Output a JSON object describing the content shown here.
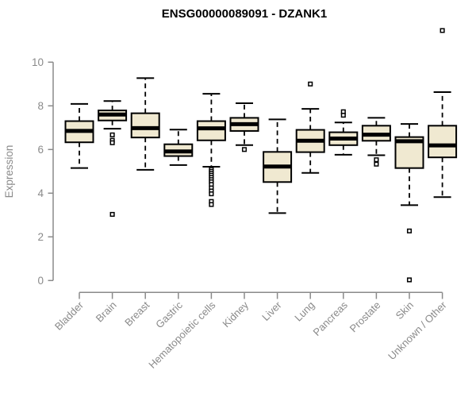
{
  "colors": {
    "box_fill": "#F0E9D1",
    "line": "#000000",
    "axis": "#8A8A8A",
    "title": "#000000",
    "background": "#FFFFFF"
  },
  "chart_data": {
    "type": "boxplot",
    "title": "ENSG00000089091 - DZANK1",
    "ylabel": "Expression",
    "xlabel": "",
    "ylim": [
      0,
      10
    ],
    "yticks": [
      0,
      2,
      4,
      6,
      8,
      10
    ],
    "grid": false,
    "legend": "none",
    "whisker_style": "dashed",
    "outlier_marker": "open-square",
    "categories": [
      "Bladder",
      "Brain",
      "Breast",
      "Gastric",
      "Hematopoietic cells",
      "Kidney",
      "Liver",
      "Lung",
      "Pancreas",
      "Prostate",
      "Skin",
      "Unknown / Other"
    ],
    "series": [
      {
        "category": "Bladder",
        "whisker_low": 5.15,
        "q1": 6.33,
        "median": 6.85,
        "q3": 7.3,
        "whisker_high": 8.09,
        "outliers": []
      },
      {
        "category": "Brain",
        "whisker_low": 6.95,
        "q1": 7.33,
        "median": 7.6,
        "q3": 7.79,
        "whisker_high": 8.22,
        "outliers": [
          6.67,
          6.42,
          6.31,
          3.03
        ]
      },
      {
        "category": "Breast",
        "whisker_low": 5.07,
        "q1": 6.55,
        "median": 6.98,
        "q3": 7.66,
        "whisker_high": 9.27,
        "outliers": []
      },
      {
        "category": "Gastric",
        "whisker_low": 5.29,
        "q1": 5.7,
        "median": 5.91,
        "q3": 6.24,
        "whisker_high": 6.91,
        "outliers": []
      },
      {
        "category": "Hematopoietic cells",
        "whisker_low": 5.21,
        "q1": 6.42,
        "median": 6.97,
        "q3": 7.3,
        "whisker_high": 8.55,
        "outliers": [
          5.09,
          5.0,
          4.91,
          4.82,
          4.72,
          4.62,
          4.52,
          4.4,
          4.24,
          4.1,
          3.97,
          3.62,
          3.48
        ]
      },
      {
        "category": "Kidney",
        "whisker_low": 6.2,
        "q1": 6.85,
        "median": 7.16,
        "q3": 7.45,
        "whisker_high": 8.12,
        "outliers": [
          6.0
        ]
      },
      {
        "category": "Liver",
        "whisker_low": 3.09,
        "q1": 4.51,
        "median": 5.22,
        "q3": 5.89,
        "whisker_high": 7.38,
        "outliers": []
      },
      {
        "category": "Lung",
        "whisker_low": 4.93,
        "q1": 5.88,
        "median": 6.4,
        "q3": 6.9,
        "whisker_high": 7.86,
        "outliers": [
          9.0
        ]
      },
      {
        "category": "Pancreas",
        "whisker_low": 5.76,
        "q1": 6.2,
        "median": 6.5,
        "q3": 6.79,
        "whisker_high": 7.24,
        "outliers": [
          7.73,
          7.57
        ]
      },
      {
        "category": "Prostate",
        "whisker_low": 5.74,
        "q1": 6.4,
        "median": 6.68,
        "q3": 7.09,
        "whisker_high": 7.45,
        "outliers": [
          5.53,
          5.33
        ]
      },
      {
        "category": "Skin",
        "whisker_low": 3.45,
        "q1": 5.15,
        "median": 6.38,
        "q3": 6.57,
        "whisker_high": 7.17,
        "outliers": [
          2.27,
          0.03
        ]
      },
      {
        "category": "Unknown / Other",
        "whisker_low": 3.82,
        "q1": 5.64,
        "median": 6.19,
        "q3": 7.09,
        "whisker_high": 8.63,
        "outliers": [
          11.45
        ]
      }
    ]
  }
}
